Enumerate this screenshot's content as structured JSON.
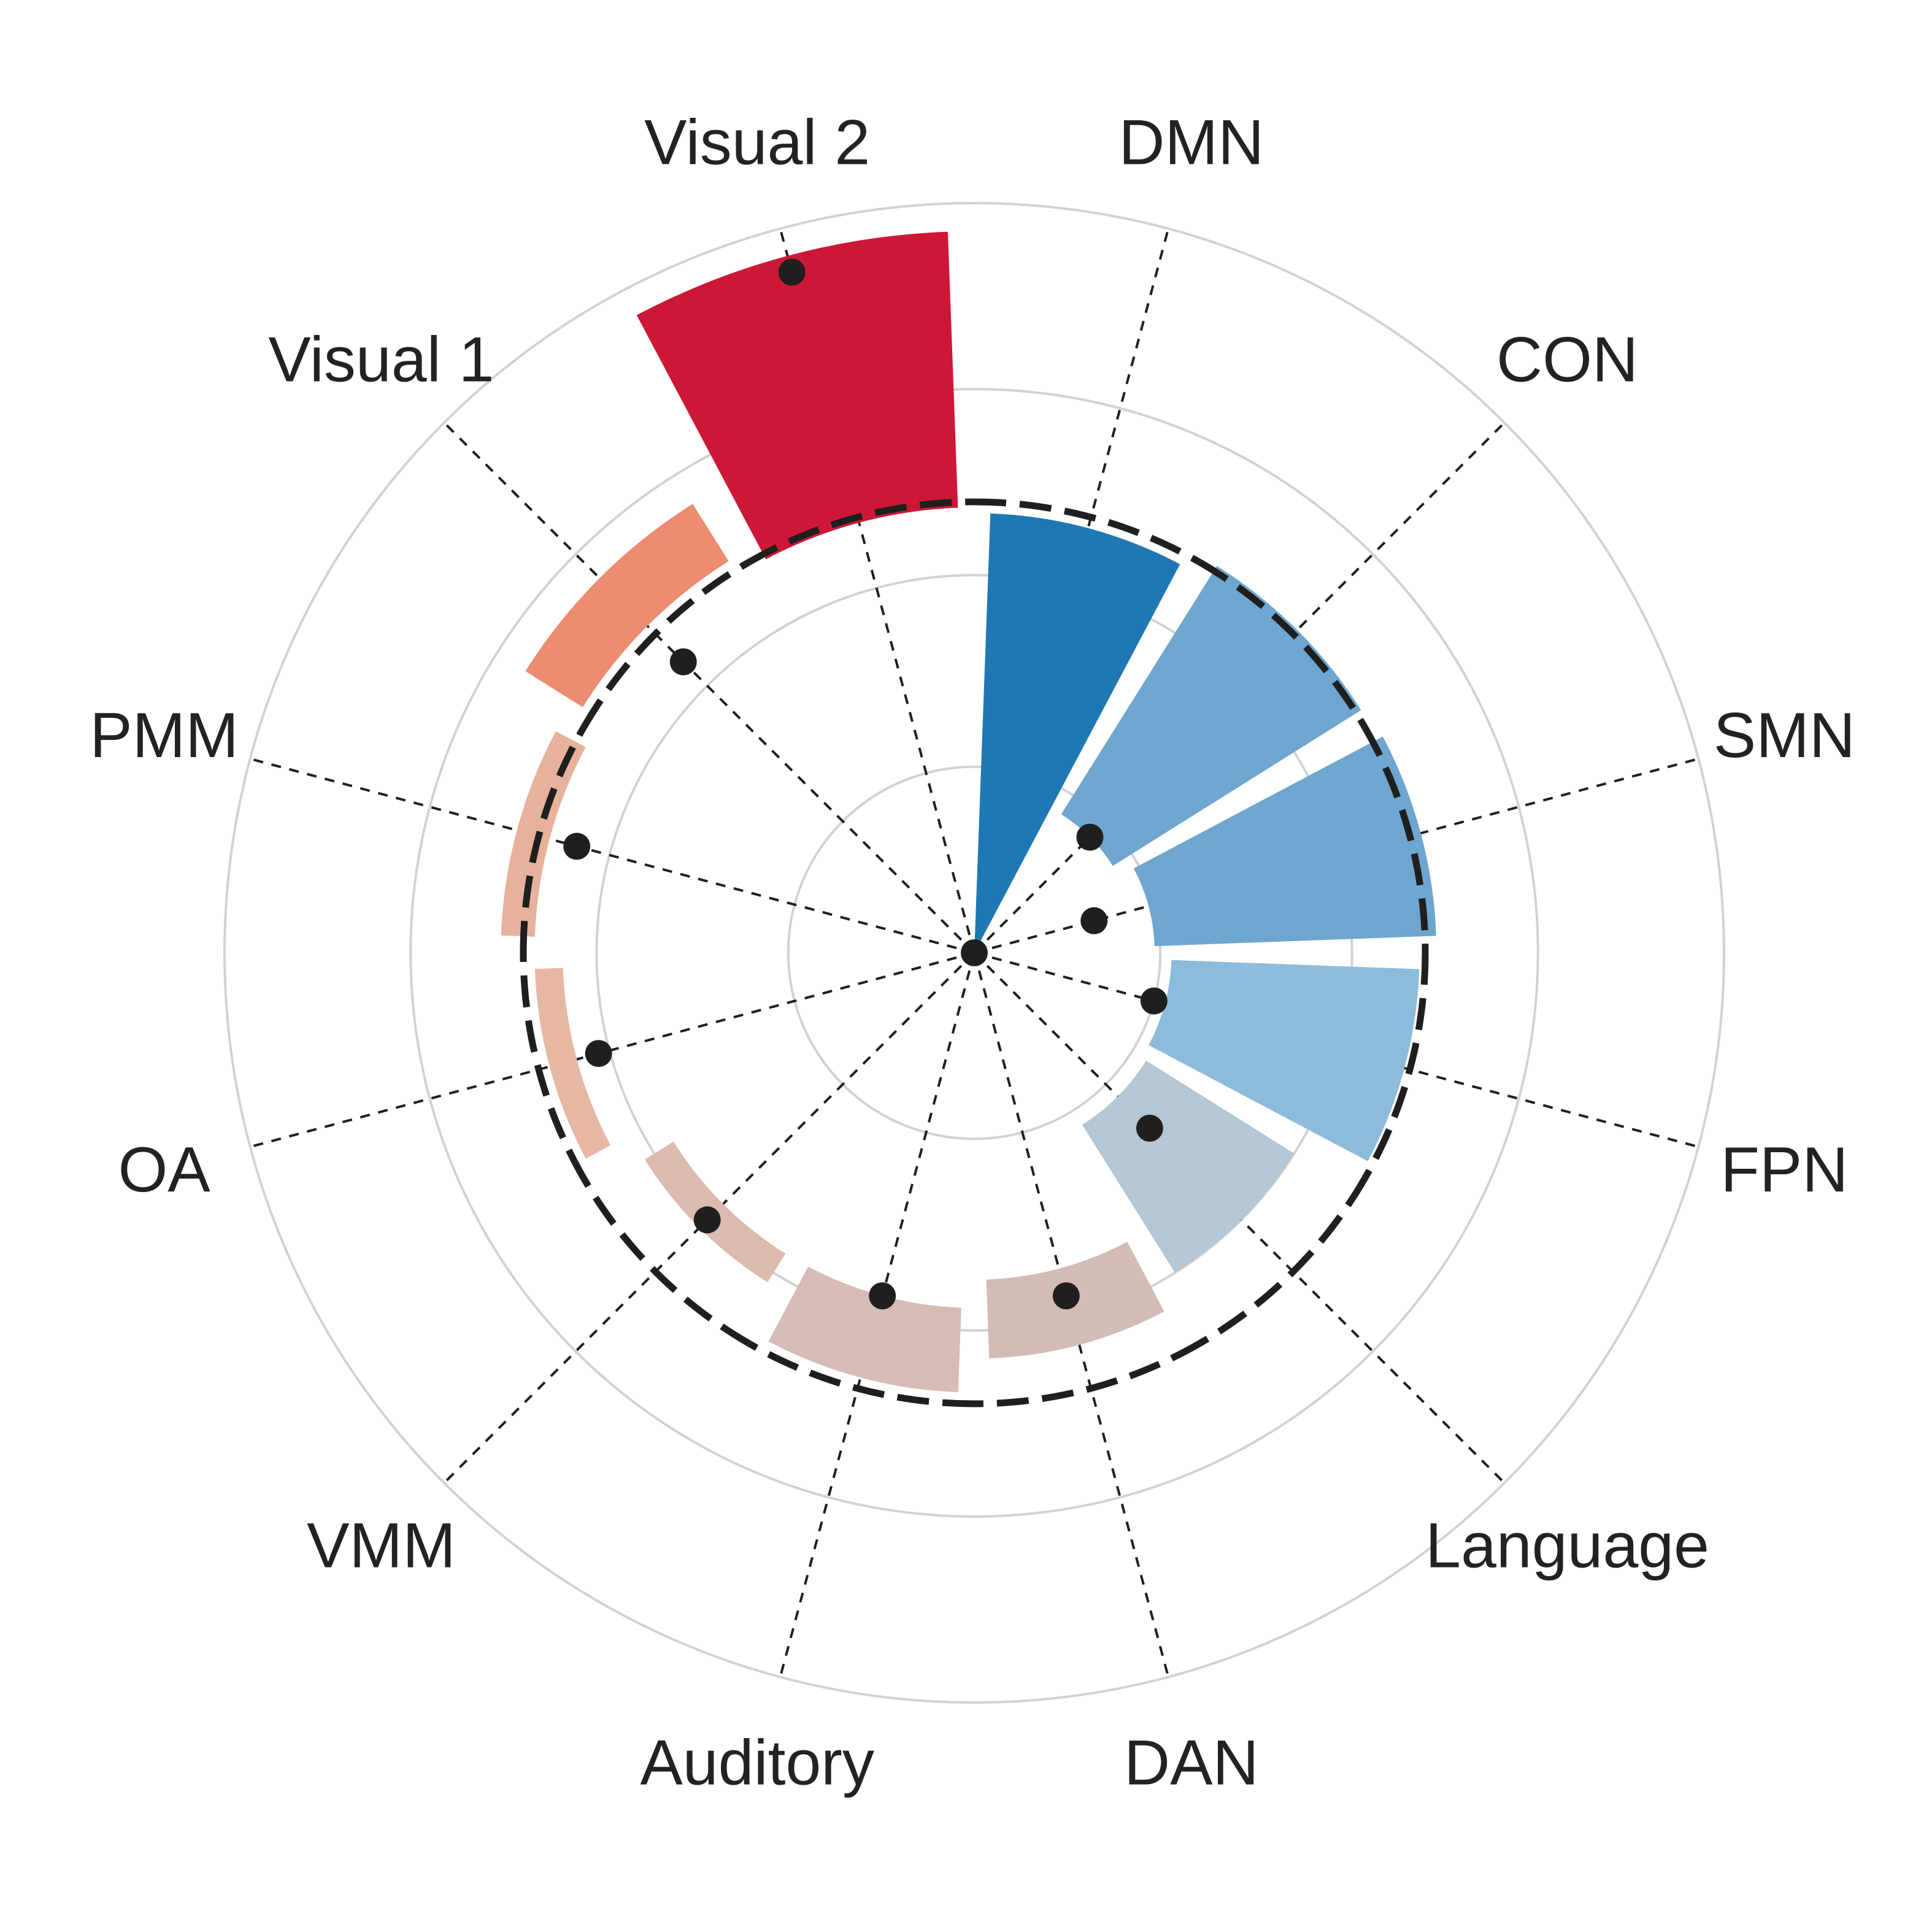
{
  "chart_data": {
    "type": "polar-bar",
    "title": "",
    "categories": [
      "DMN",
      "CON",
      "SMN",
      "FPN",
      "Language",
      "DAN",
      "Auditory",
      "VMM",
      "OA",
      "PMM",
      "Visual 1",
      "Visual 2"
    ],
    "bar_values": [
      0.78,
      0.81,
      0.82,
      0.79,
      0.67,
      0.72,
      0.78,
      0.69,
      0.73,
      0.78,
      0.94,
      1.28
    ],
    "bar_inner": [
      0,
      0.29,
      0.32,
      0.35,
      0.36,
      0.58,
      0.63,
      0.63,
      0.78,
      0.84,
      0.82,
      0.79
    ],
    "bar_colors": [
      "#1f78b4",
      "#6ea6d0",
      "#6ea6d0",
      "#8dbbdb",
      "#b5c6d4",
      "#d3bcb5",
      "#d6bcb4",
      "#dcbbaf",
      "#e6b8a3",
      "#e7b29b",
      "#ec8c71",
      "#cc1836"
    ],
    "bar_opacity": [
      1.0,
      1.0,
      1.0,
      1.0,
      1.0,
      1.0,
      1.0,
      1.0,
      1.0,
      1.0,
      1.0,
      1.0
    ],
    "reference_values": [
      0.8,
      0.8,
      0.8,
      0.8,
      0.8,
      0.8,
      0.8,
      0.8,
      0.8,
      0.8,
      0.8,
      0.8
    ],
    "point_values": [
      0.0,
      0.29,
      0.22,
      0.33,
      0.44,
      0.63,
      0.63,
      0.67,
      0.69,
      0.73,
      0.73,
      1.25
    ],
    "grid_rings": [
      0.33,
      0.67,
      1.0,
      1.33
    ],
    "rmax": 1.33,
    "grid": true
  }
}
